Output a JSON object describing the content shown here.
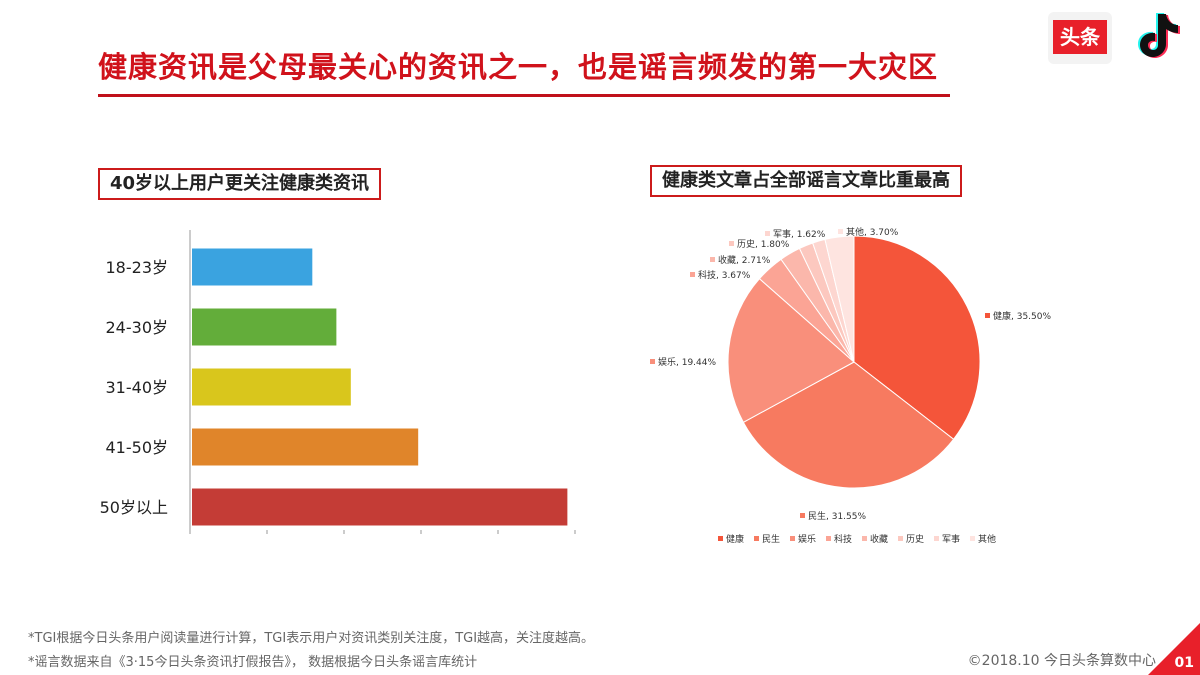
{
  "title": "健康资讯是父母最关心的资讯之一，也是谣言频发的第一大灾区",
  "logos": {
    "toutiao": "头条",
    "tiktok_icon": "tiktok-note-icon"
  },
  "bar_section_title": "40岁以上用户更关注健康类资讯",
  "pie_section_title": "健康类文章占全部谣言文章比重最高",
  "chart_data": [
    {
      "type": "bar",
      "orientation": "horizontal",
      "categories": [
        "18-23岁",
        "24-30岁",
        "31-40岁",
        "41-50岁",
        "50岁以上"
      ],
      "values": [
        25,
        30,
        33,
        47,
        78
      ],
      "colors": [
        "#3aa3e0",
        "#63ad3a",
        "#d9c61c",
        "#e0852a",
        "#c43c36"
      ],
      "xlim": [
        0,
        80
      ],
      "xtick_count": 5,
      "grid": false
    },
    {
      "type": "pie",
      "slices": [
        {
          "label": "健康",
          "value": 35.5,
          "text": "健康, 35.50%",
          "color": "#f4553a"
        },
        {
          "label": "民生",
          "value": 31.55,
          "text": "民生, 31.55%",
          "color": "#f77a60"
        },
        {
          "label": "娱乐",
          "value": 19.44,
          "text": "娱乐, 19.44%",
          "color": "#f98f7b"
        },
        {
          "label": "科技",
          "value": 3.67,
          "text": "科技, 3.67%",
          "color": "#fba495"
        },
        {
          "label": "收藏",
          "value": 2.71,
          "text": "收藏, 2.71%",
          "color": "#fbb7ab"
        },
        {
          "label": "历史",
          "value": 1.8,
          "text": "历史, 1.80%",
          "color": "#fcc8bf"
        },
        {
          "label": "军事",
          "value": 1.62,
          "text": "军事, 1.62%",
          "color": "#fdd6d0"
        },
        {
          "label": "其他",
          "value": 3.7,
          "text": "其他, 3.70%",
          "color": "#fee4e0"
        }
      ],
      "legend_position": "bottom",
      "legend": [
        "健康",
        "民生",
        "娱乐",
        "科技",
        "收藏",
        "历史",
        "军事",
        "其他"
      ]
    }
  ],
  "footnotes": [
    "*TGI根据今日头条用户阅读量进行计算，TGI表示用户对资讯类别关注度，TGI越高，关注度越高。",
    "*谣言数据来自《3·15今日头条资讯打假报告》， 数据根据今日头条谣言库统计"
  ],
  "copyright": "©2018.10 今日头条算数中心",
  "page_number": "01"
}
